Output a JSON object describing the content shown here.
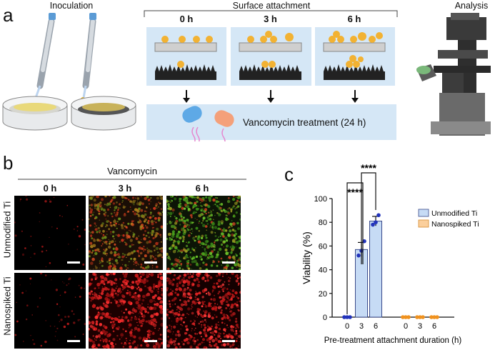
{
  "panel_a": {
    "letter": "a",
    "inoculation_title": "Inoculation",
    "surface_title": "Surface attachment",
    "analysis_title": "Analysis",
    "timepoints": [
      "0 h",
      "3 h",
      "6 h"
    ],
    "treatment_label": "Vancomycin treatment (24 h)"
  },
  "panel_b": {
    "letter": "b",
    "header": "Vancomycin",
    "columns": [
      "0 h",
      "3 h",
      "6 h"
    ],
    "rows": [
      "Unmodified Ti",
      "Nanospiked Ti"
    ]
  },
  "panel_c": {
    "letter": "c",
    "significance": [
      "****",
      "****"
    ]
  },
  "chart_data": {
    "type": "bar",
    "xlabel": "Pre-treatment attachment duration (h)",
    "ylabel": "Viability (%)",
    "ylim": [
      0,
      100
    ],
    "yticks": [
      0,
      20,
      40,
      60,
      80,
      100
    ],
    "groups": [
      "Unmodified Ti",
      "Nanospiked Ti"
    ],
    "categories": [
      "0",
      "3",
      "6"
    ],
    "series": [
      {
        "name": "Unmodified Ti",
        "values": [
          0,
          57,
          81
        ],
        "errors": [
          0,
          6,
          4
        ],
        "points": [
          [
            0,
            0,
            0
          ],
          [
            52,
            56,
            64
          ],
          [
            78,
            80,
            86
          ]
        ],
        "color": "#c6dbf5",
        "edge": "#3a4a8a",
        "dot": "#2233bb"
      },
      {
        "name": "Nanospiked Ti",
        "values": [
          0,
          0,
          0
        ],
        "errors": [
          0,
          0,
          0
        ],
        "points": [
          [
            0,
            0,
            0
          ],
          [
            0,
            0,
            0
          ],
          [
            0,
            0,
            0
          ]
        ],
        "color": "#fbcf9c",
        "edge": "#d48a2e",
        "dot": "#f0921f"
      }
    ]
  }
}
